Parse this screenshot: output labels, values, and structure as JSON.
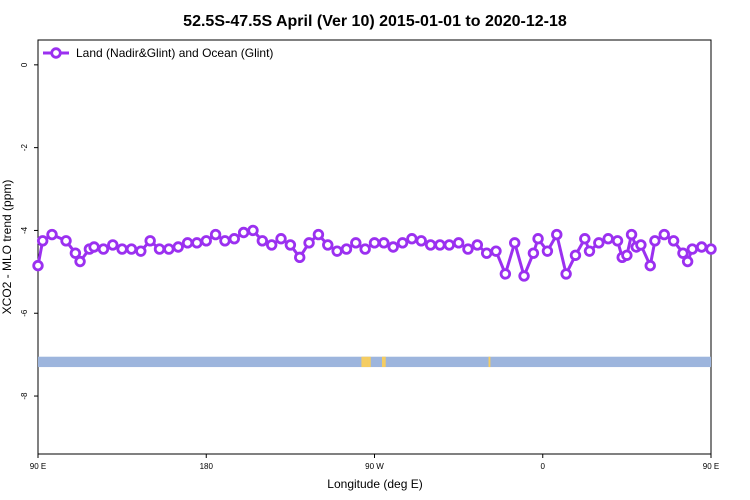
{
  "chart_data": {
    "type": "line",
    "title": "52.5S-47.5S April (Ver 10)   2015-01-01 to 2020-12-18",
    "xlabel": "Longitude (deg E)",
    "ylabel": "XCO2 - MLO trend (ppm)",
    "xlim": [
      90,
      450
    ],
    "ylim": [
      -9.4,
      0.6
    ],
    "xticks": [
      {
        "value": 90,
        "label": "90 E"
      },
      {
        "value": 180,
        "label": "180"
      },
      {
        "value": 270,
        "label": "90 W"
      },
      {
        "value": 360,
        "label": "0"
      },
      {
        "value": 450,
        "label": "90 E"
      },
      {
        "value": 540,
        "label": "180"
      }
    ],
    "yticks": [
      {
        "value": 0,
        "label": "0"
      },
      {
        "value": -2,
        "label": "-2"
      },
      {
        "value": -4,
        "label": "-4"
      },
      {
        "value": -6,
        "label": "-6"
      },
      {
        "value": -8,
        "label": "-8"
      }
    ],
    "grid": false,
    "legend_position": "top-left",
    "series": [
      {
        "name": "Land (Nadir&Glint) and Ocean (Glint)",
        "color": "#9b30f0",
        "segments": [
          {
            "x": [
              90,
              92.5,
              97.5,
              105,
              110,
              112.5,
              117.5,
              120,
              125,
              130,
              135,
              140,
              145,
              150,
              155,
              160,
              165,
              170,
              175,
              180,
              185,
              190,
              195,
              200,
              205,
              210,
              215,
              220,
              225,
              230,
              235,
              240,
              245,
              250,
              255,
              260,
              265,
              270,
              275,
              280,
              285,
              290,
              295,
              300,
              305,
              310,
              315,
              320,
              325,
              330,
              335,
              340,
              345,
              350,
              355,
              357.5,
              362.5,
              367.5,
              372.5,
              377.5,
              382.5,
              385,
              390,
              395,
              400,
              402.5,
              405,
              407.5,
              410,
              412.5,
              417.5,
              420,
              425,
              430,
              435,
              437.5,
              440,
              445,
              450
            ],
            "y": [
              -4.85,
              -4.25,
              -4.1,
              -4.25,
              -4.55,
              -4.75,
              -4.45,
              -4.4,
              -4.45,
              -4.35,
              -4.45,
              -4.45,
              -4.5,
              -4.25,
              -4.45,
              -4.45,
              -4.4,
              -4.3,
              -4.3,
              -4.25,
              -4.1,
              -4.25,
              -4.2,
              -4.05,
              -4.0,
              -4.25,
              -4.35,
              -4.2,
              -4.35,
              -4.65,
              -4.3,
              -4.1,
              -4.35,
              -4.5,
              -4.45,
              -4.3,
              -4.45,
              -4.3,
              -4.3,
              -4.4,
              -4.3,
              -4.2,
              -4.25,
              -4.35,
              -4.35,
              -4.35,
              -4.3,
              -4.45,
              -4.35,
              -4.55,
              -4.5,
              -5.05,
              -4.3,
              -5.1,
              -4.55,
              -4.2,
              -4.5,
              -4.1,
              -5.05,
              -4.6,
              -4.2,
              -4.5,
              -4.3,
              -4.2,
              -4.25,
              -4.65,
              -4.6,
              -4.1,
              -4.4,
              -4.35,
              -4.85,
              -4.25,
              -4.1,
              -4.25,
              -4.55,
              -4.75,
              -4.45,
              -4.4,
              -4.45
            ]
          }
        ]
      }
    ],
    "map_strip": {
      "y_top": -7.05,
      "y_bottom": -7.3,
      "ocean_color": "#9db5dd",
      "land_color": "#f5cd62",
      "land_x_ranges": [
        [
          263,
          266
        ],
        [
          266,
          268
        ],
        [
          274,
          276
        ],
        [
          331,
          332
        ]
      ]
    }
  }
}
